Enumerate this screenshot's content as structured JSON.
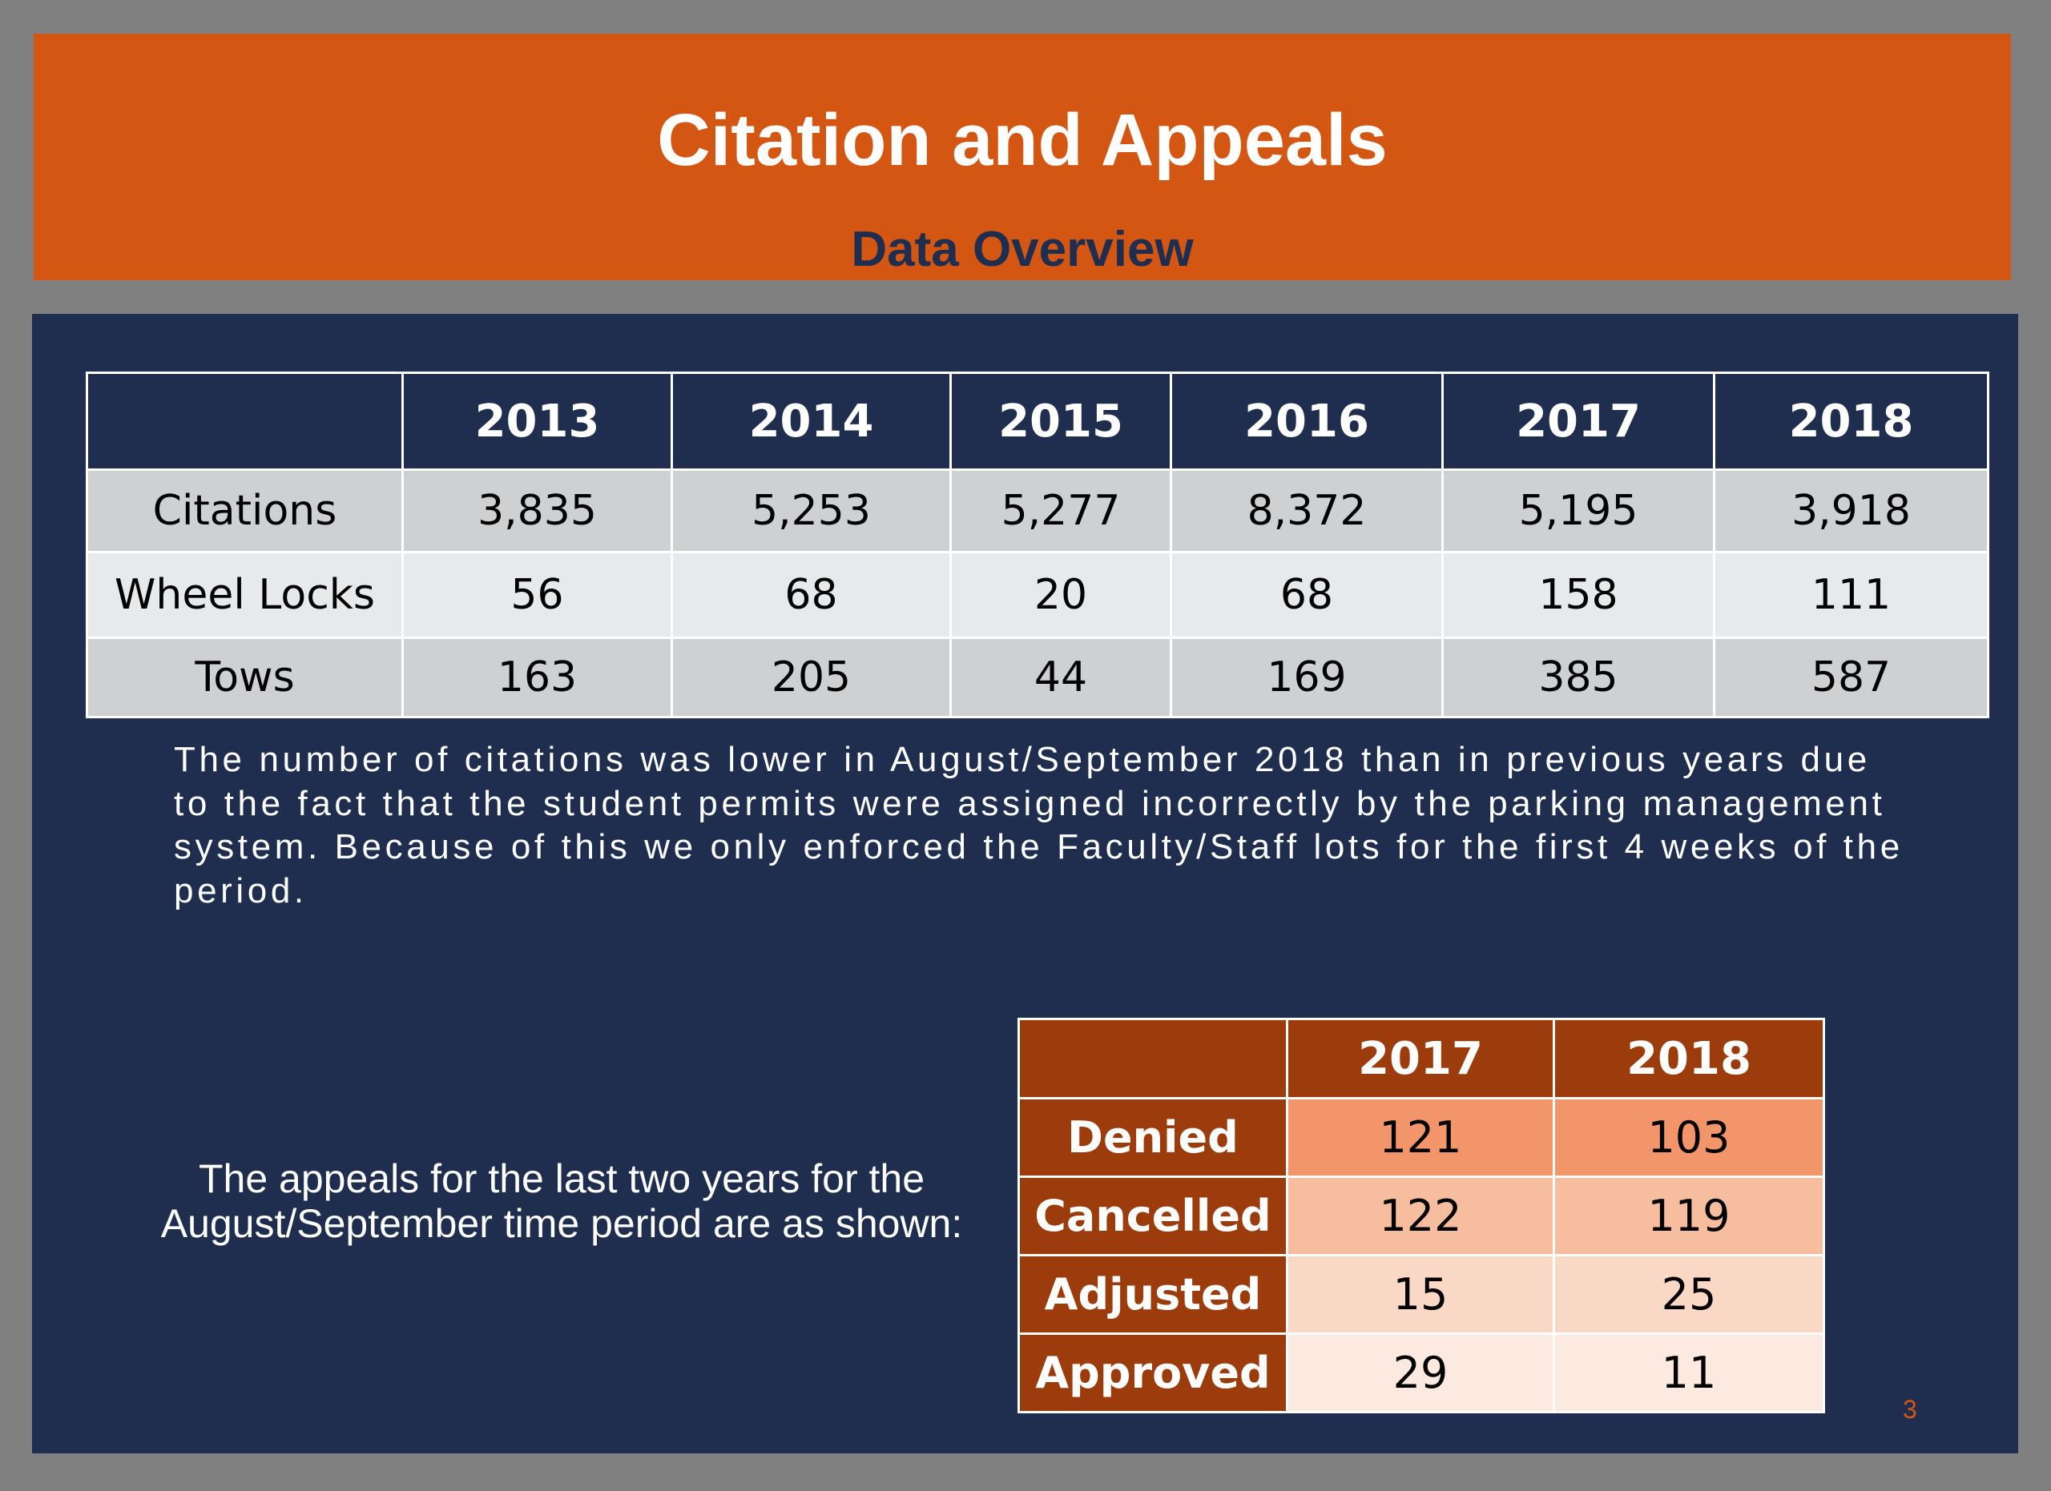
{
  "header": {
    "title": "Citation and Appeals",
    "subtitle": "Data Overview"
  },
  "colors": {
    "accent_orange": "#d35612",
    "navy": "#1f2d4e",
    "appeals_header": "#9c3c0c"
  },
  "main_table": {
    "columns": [
      "",
      "2013",
      "2014",
      "2015",
      "2016",
      "2017",
      "2018"
    ],
    "rows": [
      [
        "Citations",
        "3,835",
        "5,253",
        "5,277",
        "8,372",
        "5,195",
        "3,918"
      ],
      [
        "Wheel Locks",
        "56",
        "68",
        "20",
        "68",
        "158",
        "111"
      ],
      [
        "Tows",
        "163",
        "205",
        "44",
        "169",
        "385",
        "587"
      ]
    ]
  },
  "note": "The number of citations was lower in August/September 2018 than in previous years due to the fact that the student permits were assigned incorrectly by the parking management system.  Because of this we only enforced the Faculty/Staff lots for the first 4 weeks of the period.",
  "appeals_text": "The appeals for the last two years for the August/September time period are as shown:",
  "appeals_table": {
    "columns": [
      "",
      "2017",
      "2018"
    ],
    "rows": [
      [
        "Denied",
        "121",
        "103"
      ],
      [
        "Cancelled",
        "122",
        "119"
      ],
      [
        "Adjusted",
        "15",
        "25"
      ],
      [
        "Approved",
        "29",
        "11"
      ]
    ]
  },
  "page_number": "3"
}
